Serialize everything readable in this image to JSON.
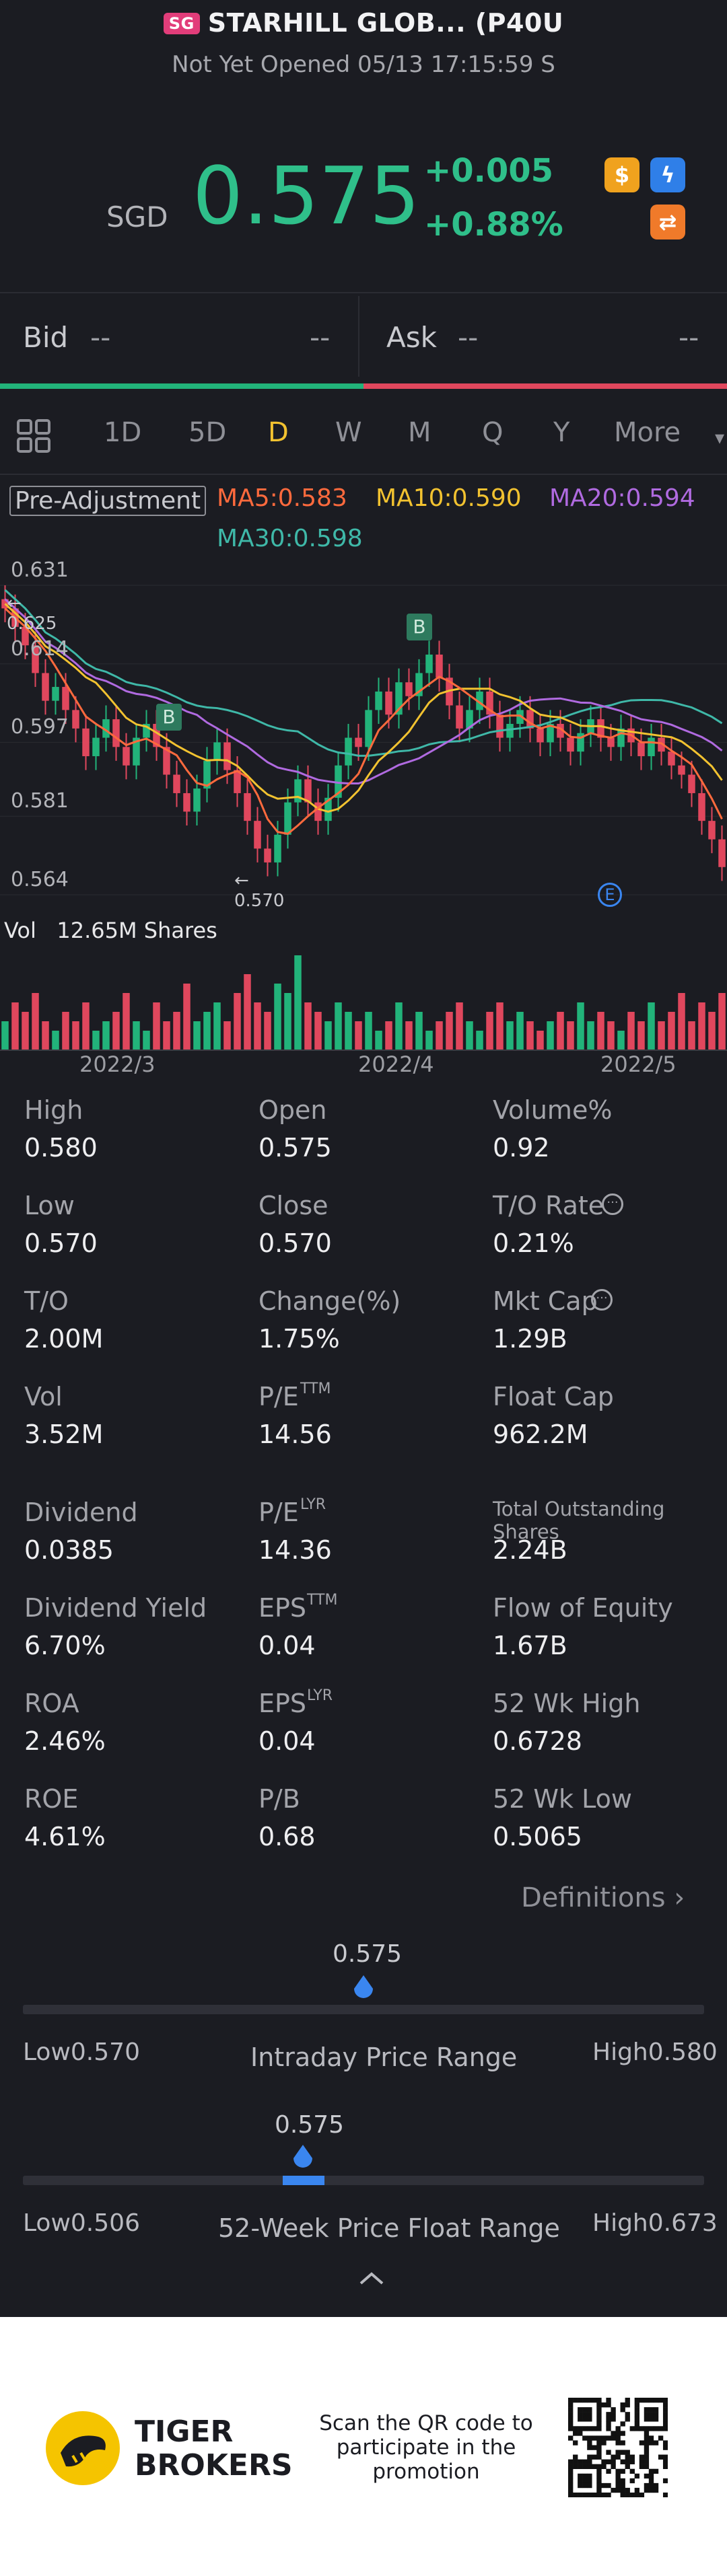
{
  "header": {
    "exchange_badge": "SG",
    "title": "STARHILL GLOB... (P40U",
    "subtitle": "Not Yet Opened 05/13 17:15:59 S"
  },
  "quote": {
    "currency": "SGD",
    "price": "0.575",
    "change": "+0.005",
    "change_pct": "+0.88%",
    "up_color": "#2fbf8a"
  },
  "icons": [
    "dollar-icon",
    "flash-icon",
    "switch-icon"
  ],
  "orderbook": {
    "bid_label": "Bid",
    "bid_price": "--",
    "bid_size": "--",
    "ask_label": "Ask",
    "ask_price": "--",
    "ask_size": "--"
  },
  "tabs": [
    "1D",
    "5D",
    "D",
    "W",
    "M",
    "Q",
    "Y",
    "More"
  ],
  "active_tab": "D",
  "legend": {
    "adjust": "Pre-Adjustment",
    "ma5": "MA5:0.583",
    "ma10": "MA10:0.590",
    "ma20": "MA20:0.594",
    "ma30": "MA30:0.598"
  },
  "chart_data": {
    "type": "candlestick",
    "y_ticks": [
      "0.631",
      "0.614",
      "0.597",
      "0.581",
      "0.564"
    ],
    "ylim": [
      0.564,
      0.631
    ],
    "high_marker": "0.625",
    "low_marker": "0.570",
    "x_ticks": [
      "2022/3",
      "2022/4",
      "2022/5"
    ],
    "events": [
      "B",
      "B",
      "E"
    ],
    "volume_label": "Vol",
    "volume_value": "12.65M Shares",
    "colors": {
      "up": "#22b37a",
      "down": "#e0475d",
      "ma5": "#ff6a3d",
      "ma10": "#f2c230",
      "ma20": "#b06ae0",
      "ma30": "#3fb8a8"
    },
    "closes": [
      0.626,
      0.622,
      0.618,
      0.612,
      0.606,
      0.609,
      0.604,
      0.6,
      0.594,
      0.598,
      0.602,
      0.596,
      0.592,
      0.598,
      0.601,
      0.596,
      0.59,
      0.586,
      0.582,
      0.587,
      0.593,
      0.597,
      0.591,
      0.586,
      0.58,
      0.574,
      0.571,
      0.577,
      0.584,
      0.589,
      0.584,
      0.58,
      0.585,
      0.592,
      0.598,
      0.596,
      0.604,
      0.608,
      0.603,
      0.61,
      0.607,
      0.612,
      0.616,
      0.611,
      0.605,
      0.6,
      0.604,
      0.608,
      0.603,
      0.598,
      0.601,
      0.604,
      0.6,
      0.597,
      0.601,
      0.598,
      0.595,
      0.599,
      0.602,
      0.598,
      0.596,
      0.6,
      0.597,
      0.594,
      0.598,
      0.595,
      0.592,
      0.59,
      0.586,
      0.58,
      0.576,
      0.57
    ],
    "volumes": [
      0.3,
      0.5,
      0.4,
      0.6,
      0.3,
      0.2,
      0.4,
      0.3,
      0.5,
      0.2,
      0.3,
      0.4,
      0.6,
      0.3,
      0.2,
      0.5,
      0.3,
      0.4,
      0.7,
      0.3,
      0.4,
      0.5,
      0.3,
      0.6,
      0.8,
      0.5,
      0.4,
      0.7,
      0.6,
      1.0,
      0.5,
      0.4,
      0.3,
      0.5,
      0.4,
      0.3,
      0.4,
      0.2,
      0.3,
      0.5,
      0.3,
      0.4,
      0.2,
      0.3,
      0.4,
      0.5,
      0.3,
      0.2,
      0.4,
      0.5,
      0.3,
      0.4,
      0.3,
      0.2,
      0.3,
      0.4,
      0.3,
      0.5,
      0.3,
      0.4,
      0.3,
      0.2,
      0.4,
      0.3,
      0.5,
      0.3,
      0.4,
      0.6,
      0.3,
      0.5,
      0.4,
      0.6
    ]
  },
  "stats": [
    {
      "label": "High",
      "value": "0.580"
    },
    {
      "label": "Open",
      "value": "0.575"
    },
    {
      "label": "Volume%",
      "value": "0.92"
    },
    {
      "label": "Low",
      "value": "0.570"
    },
    {
      "label": "Close",
      "value": "0.570"
    },
    {
      "label": "T/O Rate",
      "value": "0.21%"
    },
    {
      "label": "T/O",
      "value": "2.00M"
    },
    {
      "label": "Change(%)",
      "value": "1.75%"
    },
    {
      "label": "Mkt Cap",
      "value": "1.29B"
    },
    {
      "label": "Vol",
      "value": "3.52M"
    },
    {
      "label": "P/E",
      "sup": "TTM",
      "value": "14.56"
    },
    {
      "label": "Float Cap",
      "value": "962.2M"
    },
    {
      "label": "Dividend",
      "value": "0.0385"
    },
    {
      "label": "P/E",
      "sup": "LYR",
      "value": "14.36"
    },
    {
      "label": "Total Outstanding Shares",
      "value": "2.24B"
    },
    {
      "label": "Dividend Yield",
      "value": "6.70%"
    },
    {
      "label": "EPS",
      "sup": "TTM",
      "value": "0.04"
    },
    {
      "label": "Flow of Equity",
      "value": "1.67B"
    },
    {
      "label": "ROA",
      "value": "2.46%"
    },
    {
      "label": "EPS",
      "sup": "LYR",
      "value": "0.04"
    },
    {
      "label": "52 Wk High",
      "value": "0.6728"
    },
    {
      "label": "ROE",
      "value": "4.61%"
    },
    {
      "label": "P/B",
      "value": "0.68"
    },
    {
      "label": "52 Wk Low",
      "value": "0.5065"
    }
  ],
  "definitions_link": "Definitions",
  "intraday": {
    "current": "0.575",
    "low_label": "Low",
    "low": "0.570",
    "title": "Intraday Price Range",
    "high_label": "High",
    "high": "0.580",
    "position": 0.5
  },
  "week52": {
    "current": "0.575",
    "low_label": "Low",
    "low": "0.506",
    "title": "52-Week Price Float Range",
    "high_label": "High",
    "high": "0.673",
    "position": 0.41
  },
  "footer": {
    "brand_line1": "TIGER",
    "brand_line2": "BROKERS",
    "promo_line1": "Scan the QR code to",
    "promo_line2": "participate in the",
    "promo_line3": "promotion"
  }
}
